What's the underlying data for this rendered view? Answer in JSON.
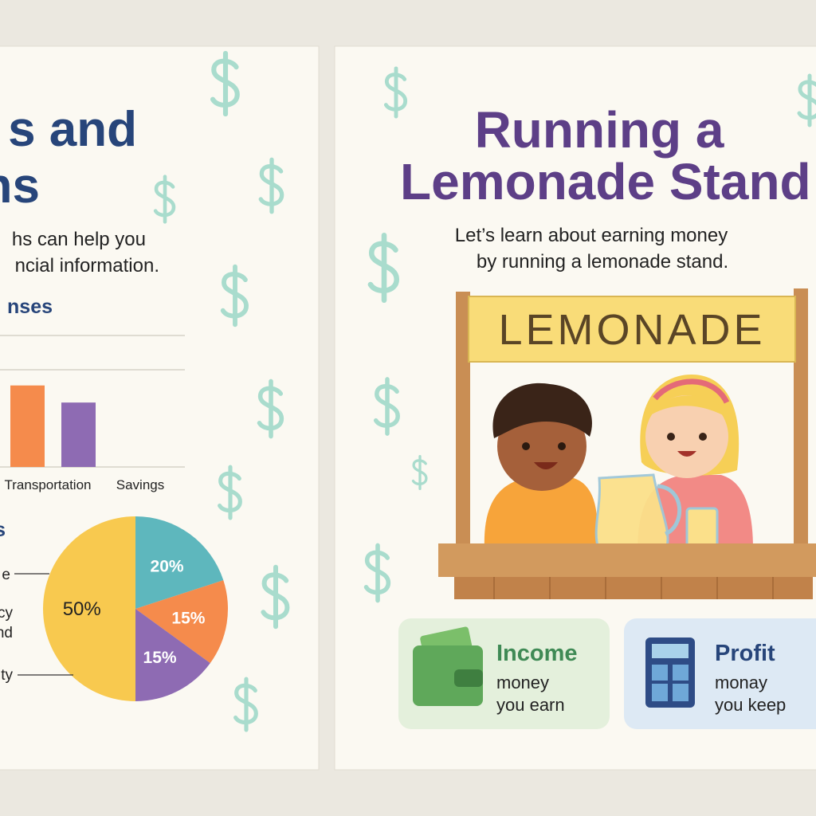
{
  "left_card": {
    "title_lines": [
      "s and",
      "ns"
    ],
    "intro_lines": [
      "hs can help you",
      "ncial information."
    ],
    "bar_heading": "nses",
    "bar_chart": {
      "type": "bar",
      "categories": [
        "Transportation",
        "Savings"
      ],
      "values": [
        62,
        49
      ],
      "colors": [
        "#f58b4c",
        "#8e6bb3"
      ],
      "ylim": [
        0,
        100
      ]
    },
    "pie_heading": "s",
    "pie_chart": {
      "type": "pie",
      "values": [
        50,
        20,
        15,
        15
      ],
      "value_labels": [
        "50%",
        "20%",
        "15%",
        "15%"
      ],
      "colors": [
        "#f8c94f",
        "#5eb7bd",
        "#f58b4c",
        "#8e6bb3"
      ]
    },
    "side_labels": [
      "e",
      "cy",
      "nd",
      "ty"
    ]
  },
  "right_card": {
    "title_lines": [
      "Running a",
      "Lemonade Stand"
    ],
    "intro_lines": [
      "Let’s learn about earning money",
      "by running a lemonade stand."
    ],
    "sign": "LEMONADE",
    "income": {
      "title": "Income",
      "lines": [
        "money",
        "you earn"
      ]
    },
    "profit": {
      "title": "Profit",
      "lines": [
        "monay",
        "you keep"
      ]
    }
  }
}
